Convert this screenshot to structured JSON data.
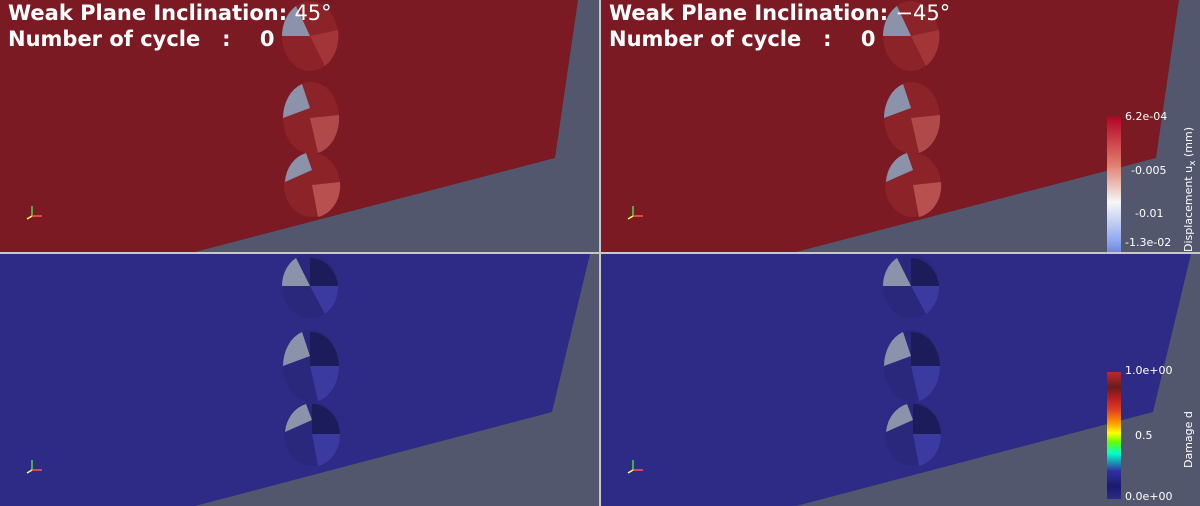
{
  "panels": [
    {
      "id": "top-left",
      "field": "displacement",
      "title_label": "Weak Plane Inclination:",
      "title_value": "45°",
      "cycle_label": "Number of cycle   :",
      "cycle_value": "0"
    },
    {
      "id": "top-right",
      "field": "displacement",
      "title_label": "Weak Plane Inclination:",
      "title_value": "−45°",
      "cycle_label": "Number of cycle   :",
      "cycle_value": "0"
    },
    {
      "id": "bottom-left",
      "field": "damage"
    },
    {
      "id": "bottom-right",
      "field": "damage"
    }
  ],
  "colorbars": {
    "displacement": {
      "title": "Displacement u",
      "title_sub": "x",
      "title_unit": " (mm)",
      "ticks": [
        "6.2e-04",
        "-0.005",
        "-0.01",
        "-1.3e-02"
      ],
      "colors": [
        "#b40426",
        "#f7f7f7",
        "#3b4cc0"
      ]
    },
    "damage": {
      "title": "Damage d",
      "ticks": [
        "1.0e+00",
        "0.5",
        "0.0e+00"
      ],
      "colors": [
        "#c0292b",
        "#6b1a1a",
        "#e04020",
        "#ff9900",
        "#ffff00",
        "#66ff00",
        "#00ffcc",
        "#3030a0",
        "#1a1a6e"
      ]
    }
  },
  "colors": {
    "background": "#52576e",
    "specimen_displacement": "#7b1a22",
    "specimen_damage": "#2d2b86",
    "hole_fill": "#8a93aa",
    "divider": "#c8c8c8"
  }
}
